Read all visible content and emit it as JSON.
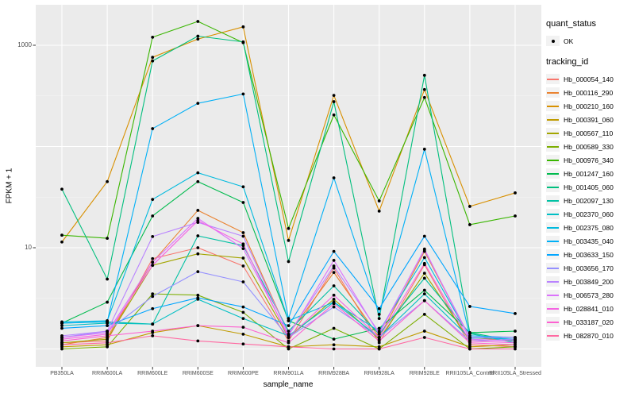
{
  "figure": {
    "background": "#ffffff",
    "panel_bg": "#ebebeb",
    "grid_color": "#ffffff",
    "tick_color": "#333333",
    "axis_text_color": "#4d4d4d",
    "point_color": "#000000"
  },
  "legend": {
    "quant_status_title": "quant_status",
    "quant_status_items": [
      "OK"
    ],
    "tracking_title": "tracking_id"
  },
  "chart_data": {
    "type": "line",
    "title": "",
    "xlabel": "sample_name",
    "ylabel": "FPKM + 1",
    "y_scale": "log10",
    "ylim": [
      0.95,
      2800
    ],
    "grid": true,
    "legend_position": "right",
    "y_major_gridlines": [
      1,
      10,
      100,
      1000
    ],
    "y_minor_gridlines": [
      3.162,
      31.62,
      316.2
    ],
    "y_labeled_ticks": [
      {
        "value": 1000,
        "label": "1000"
      },
      {
        "value": 10,
        "label": "10"
      }
    ],
    "categories": [
      "PB350LA",
      "RRIM600LA",
      "RRIM600LE",
      "RRIM600SE",
      "RRIM600PE",
      "RRIM901LA",
      "RRIM928BA",
      "RRIM928LA",
      "RRIM928LE",
      "RRII105LA_Control",
      "RRII105LA_Stressed"
    ],
    "series": [
      {
        "name": "Hb_000054_140",
        "color": "#F8766D",
        "values": [
          1.15,
          1.2,
          7.8,
          10,
          6.6,
          1.2,
          6.3,
          1.15,
          6.8,
          1.1,
          1.05
        ]
      },
      {
        "name": "Hb_000116_290",
        "color": "#EA8331",
        "values": [
          1.1,
          1.3,
          7.2,
          23.4,
          14.1,
          1.4,
          5.7,
          1.3,
          9.2,
          1.3,
          1.2
        ]
      },
      {
        "name": "Hb_000210_160",
        "color": "#D89000",
        "values": [
          11.4,
          45,
          760,
          1150,
          1520,
          11.8,
          320,
          23,
          365,
          25.6,
          34.8
        ]
      },
      {
        "name": "Hb_000391_060",
        "color": "#C09B00",
        "values": [
          1.05,
          1.1,
          1.45,
          1.7,
          1.4,
          1.05,
          1.1,
          1.05,
          1.5,
          1.05,
          1.1
        ]
      },
      {
        "name": "Hb_000567_110",
        "color": "#A3A500",
        "values": [
          1.15,
          1.25,
          6.7,
          8.7,
          7.9,
          1.3,
          3.1,
          1.25,
          5.6,
          1.2,
          1.25
        ]
      },
      {
        "name": "Hb_000589_330",
        "color": "#7CAE00",
        "values": [
          1.0,
          1.05,
          3.5,
          3.4,
          2.3,
          1.0,
          1.6,
          1.0,
          2.2,
          1.0,
          1.05
        ]
      },
      {
        "name": "Hb_000976_340",
        "color": "#39B600",
        "values": [
          13.3,
          12.4,
          1200,
          1720,
          1060,
          15.5,
          205,
          29,
          305,
          16.9,
          20.6
        ]
      },
      {
        "name": "Hb_001247_160",
        "color": "#00BB4E",
        "values": [
          1.8,
          2.9,
          20.6,
          45,
          28,
          1.9,
          1.25,
          1.6,
          3.8,
          1.45,
          1.5
        ]
      },
      {
        "name": "Hb_001405_060",
        "color": "#00BF7D",
        "values": [
          37.9,
          4.9,
          700,
          1230,
          1080,
          7.3,
          277,
          2.0,
          505,
          1.45,
          1.2
        ]
      },
      {
        "name": "Hb_002097_130",
        "color": "#00C1A3",
        "values": [
          1.8,
          1.85,
          1.76,
          13.1,
          10.5,
          1.5,
          4.2,
          1.4,
          5.0,
          1.42,
          1.15
        ]
      },
      {
        "name": "Hb_002370_060",
        "color": "#00BFC4",
        "values": [
          1.7,
          1.8,
          1.76,
          3.1,
          2.0,
          1.35,
          2.9,
          1.3,
          3.5,
          1.28,
          1.3
        ]
      },
      {
        "name": "Hb_002375_080",
        "color": "#00BADE",
        "values": [
          1.85,
          1.9,
          30,
          55,
          40,
          1.9,
          2.9,
          1.5,
          8,
          1.3,
          1.25
        ]
      },
      {
        "name": "Hb_003435_040",
        "color": "#00B0F6",
        "values": [
          1.8,
          1.86,
          150,
          267,
          330,
          2.0,
          49,
          2.2,
          94,
          1.35,
          1.3
        ]
      },
      {
        "name": "Hb_003633_150",
        "color": "#00A5FF",
        "values": [
          1.6,
          1.7,
          2.5,
          3.2,
          2.6,
          1.7,
          9.2,
          2.5,
          13,
          2.63,
          2.24
        ]
      },
      {
        "name": "Hb_003656_170",
        "color": "#9590FF",
        "values": [
          1.3,
          1.5,
          3.3,
          5.8,
          4.6,
          1.3,
          2.6,
          1.3,
          3.0,
          1.2,
          1.25
        ]
      },
      {
        "name": "Hb_003849_200",
        "color": "#B983FF",
        "values": [
          1.35,
          1.5,
          12.9,
          17.8,
          13,
          1.4,
          6.6,
          1.45,
          9.5,
          1.3,
          1.3
        ]
      },
      {
        "name": "Hb_006573_280",
        "color": "#DB72FB",
        "values": [
          1.3,
          1.45,
          7.2,
          19.5,
          9.8,
          1.35,
          7.5,
          1.4,
          9.7,
          1.25,
          1.2
        ]
      },
      {
        "name": "Hb_028841_010",
        "color": "#F564E3",
        "values": [
          1.25,
          1.4,
          6.7,
          18.5,
          10.9,
          1.3,
          3.4,
          1.3,
          7.0,
          1.2,
          1.15
        ]
      },
      {
        "name": "Hb_033187_020",
        "color": "#FD61D1",
        "values": [
          1.2,
          1.35,
          1.5,
          1.7,
          1.64,
          1.15,
          2.8,
          1.2,
          3.0,
          1.15,
          1.1
        ]
      },
      {
        "name": "Hb_082870_010",
        "color": "#FF68A1",
        "values": [
          1.1,
          1.15,
          1.35,
          1.2,
          1.12,
          1.05,
          1.0,
          1.0,
          1.3,
          1.0,
          1.0
        ]
      }
    ]
  }
}
